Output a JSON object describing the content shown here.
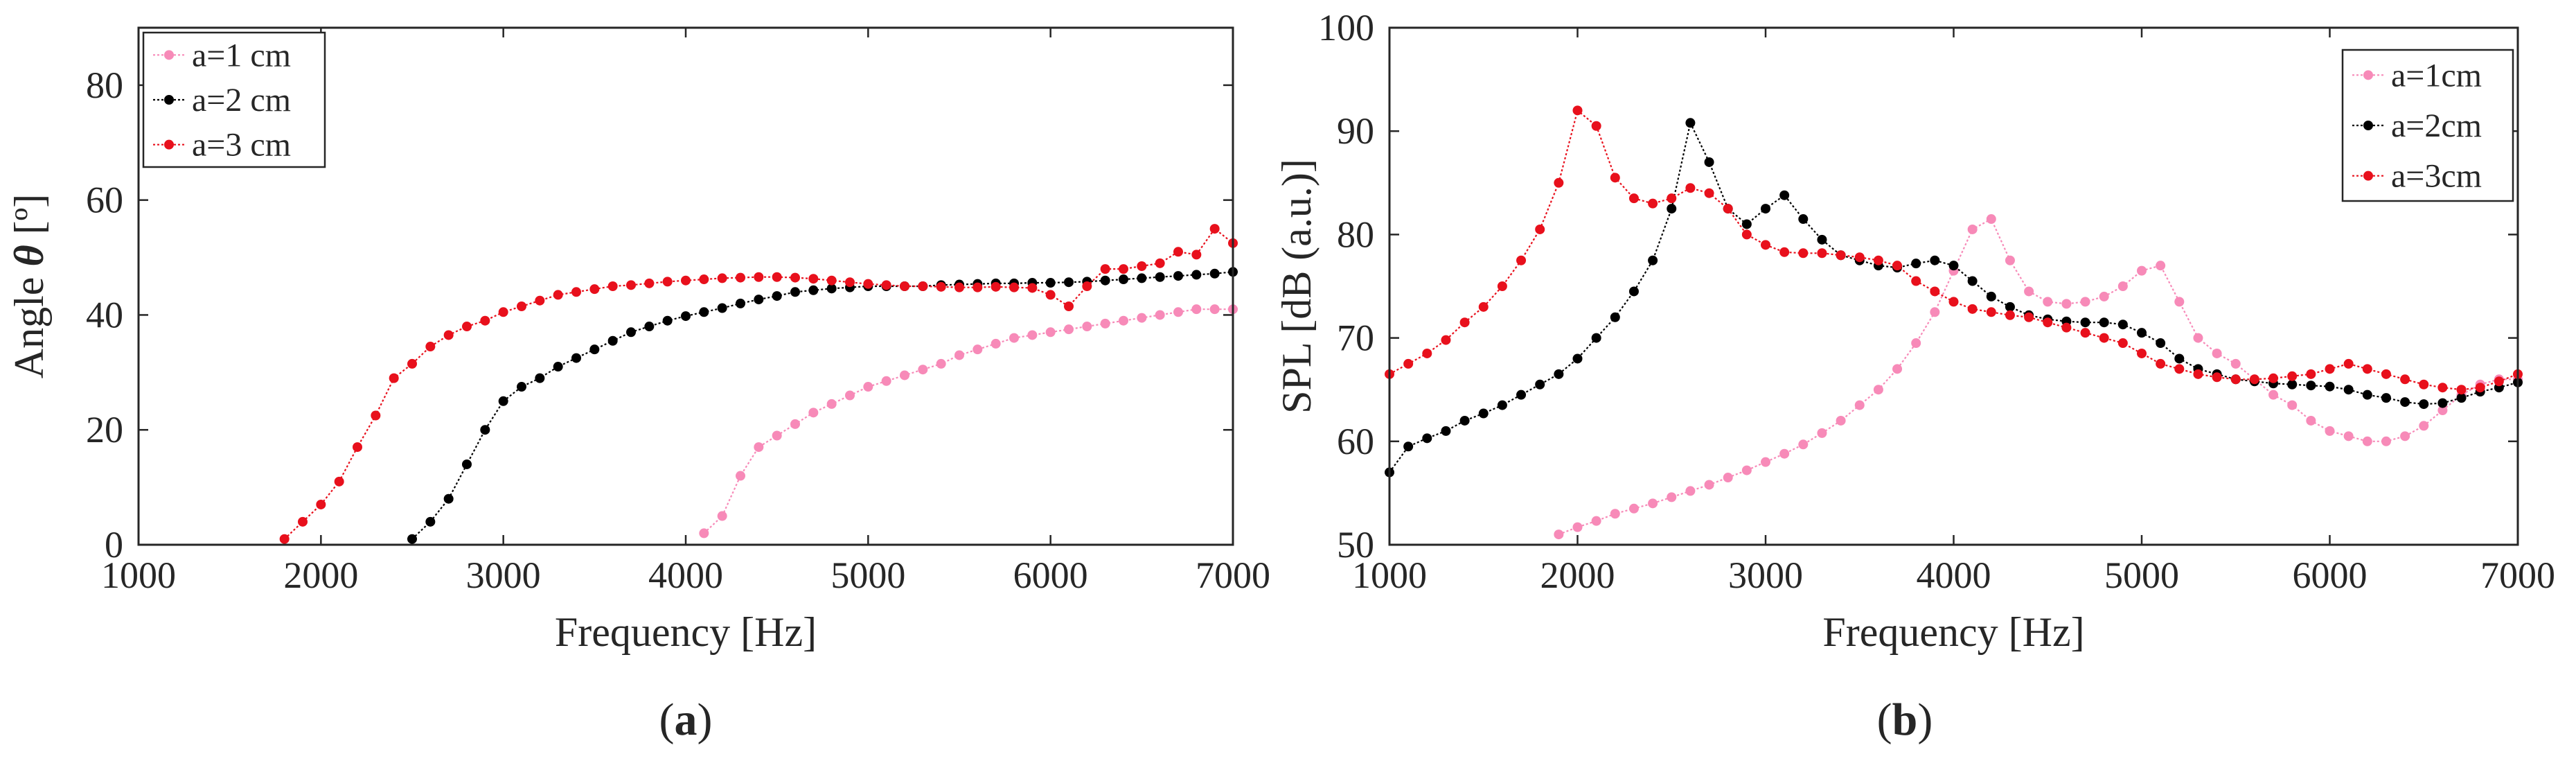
{
  "chart_data": [
    {
      "type": "line",
      "panel_label_prefix": "(",
      "panel_label_letter": "a",
      "panel_label_suffix": ")",
      "xlabel": "Frequency [Hz]",
      "ylabel_prefix": "Angle ",
      "ylabel_symbol": "θ",
      "ylabel_suffix": " [º]",
      "xlim": [
        1000,
        7000
      ],
      "ylim": [
        0,
        90
      ],
      "xticks": [
        1000,
        2000,
        3000,
        4000,
        5000,
        6000,
        7000
      ],
      "yticks": [
        0,
        20,
        40,
        60,
        80
      ],
      "xtick_labels": [
        "1000",
        "2000",
        "3000",
        "4000",
        "5000",
        "6000",
        "7000"
      ],
      "ytick_labels": [
        "0",
        "20",
        "40",
        "60",
        "80"
      ],
      "legend_position": "top-left",
      "series": [
        {
          "name": "a=1 cm",
          "color": "#f78ab8",
          "x": [
            4100,
            4200,
            4300,
            4400,
            4500,
            4600,
            4700,
            4800,
            4900,
            5000,
            5100,
            5200,
            5300,
            5400,
            5500,
            5600,
            5700,
            5800,
            5900,
            6000,
            6100,
            6200,
            6300,
            6400,
            6500,
            6600,
            6700,
            6800,
            6900,
            7000
          ],
          "y": [
            2,
            5,
            12,
            17,
            19,
            21,
            23,
            24.5,
            26,
            27.5,
            28.5,
            29.5,
            30.5,
            31.5,
            33,
            34,
            35,
            36,
            36.5,
            37,
            37.5,
            38,
            38.5,
            39,
            39.5,
            40,
            40.5,
            41,
            41,
            41
          ]
        },
        {
          "name": "a=2 cm",
          "color": "#000000",
          "x": [
            2500,
            2600,
            2700,
            2800,
            2900,
            3000,
            3100,
            3200,
            3300,
            3400,
            3500,
            3600,
            3700,
            3800,
            3900,
            4000,
            4100,
            4200,
            4300,
            4400,
            4500,
            4600,
            4700,
            4800,
            4900,
            5000,
            5100,
            5200,
            5300,
            5400,
            5500,
            5600,
            5700,
            5800,
            5900,
            6000,
            6100,
            6200,
            6300,
            6400,
            6500,
            6600,
            6700,
            6800,
            6900,
            7000
          ],
          "y": [
            1,
            4,
            8,
            14,
            20,
            25,
            27.5,
            29,
            31,
            32.5,
            34,
            35.5,
            37,
            38,
            39,
            39.8,
            40.5,
            41.2,
            42,
            42.7,
            43.3,
            44,
            44.3,
            44.6,
            44.8,
            45,
            45,
            45,
            45,
            45.2,
            45.3,
            45.4,
            45.5,
            45.5,
            45.6,
            45.6,
            45.7,
            45.8,
            46,
            46.2,
            46.4,
            46.6,
            46.8,
            47,
            47.2,
            47.5
          ]
        },
        {
          "name": "a=3 cm",
          "color": "#e8101c",
          "x": [
            1800,
            1900,
            2000,
            2100,
            2200,
            2300,
            2400,
            2500,
            2600,
            2700,
            2800,
            2900,
            3000,
            3100,
            3200,
            3300,
            3400,
            3500,
            3600,
            3700,
            3800,
            3900,
            4000,
            4100,
            4200,
            4300,
            4400,
            4500,
            4600,
            4700,
            4800,
            4900,
            5000,
            5100,
            5200,
            5300,
            5400,
            5500,
            5600,
            5700,
            5800,
            5900,
            6000,
            6100,
            6200,
            6300,
            6400,
            6500,
            6600,
            6700,
            6800,
            6900,
            7000
          ],
          "y": [
            1,
            4,
            7,
            11,
            17,
            22.5,
            29,
            31.5,
            34.5,
            36.5,
            38,
            39,
            40.5,
            41.5,
            42.5,
            43.5,
            44,
            44.5,
            45,
            45.2,
            45.5,
            45.8,
            46,
            46.2,
            46.4,
            46.5,
            46.6,
            46.6,
            46.5,
            46.3,
            46,
            45.7,
            45.4,
            45.2,
            45,
            45,
            44.9,
            44.8,
            44.8,
            44.9,
            44.8,
            44.7,
            43.5,
            41.5,
            45,
            48,
            48,
            48.5,
            49,
            51,
            50.5,
            55,
            52.5
          ]
        }
      ]
    },
    {
      "type": "line",
      "panel_label_prefix": "(",
      "panel_label_letter": "b",
      "panel_label_suffix": ")",
      "xlabel": "Frequency [Hz]",
      "ylabel": "SPL [dB (a.u.)]",
      "xlim": [
        1000,
        7000
      ],
      "ylim": [
        50,
        100
      ],
      "xticks": [
        1000,
        2000,
        3000,
        4000,
        5000,
        6000,
        7000
      ],
      "yticks": [
        50,
        60,
        70,
        80,
        90,
        100
      ],
      "xtick_labels": [
        "1000",
        "2000",
        "3000",
        "4000",
        "5000",
        "6000",
        "7000"
      ],
      "ytick_labels": [
        "50",
        "60",
        "70",
        "80",
        "90",
        "100"
      ],
      "legend_position": "top-right",
      "series": [
        {
          "name": "a=1cm",
          "color": "#f78ab8",
          "x": [
            1900,
            2000,
            2100,
            2200,
            2300,
            2400,
            2500,
            2600,
            2700,
            2800,
            2900,
            3000,
            3100,
            3200,
            3300,
            3400,
            3500,
            3600,
            3700,
            3800,
            3900,
            4000,
            4100,
            4200,
            4300,
            4400,
            4500,
            4600,
            4700,
            4800,
            4900,
            5000,
            5100,
            5200,
            5300,
            5400,
            5500,
            5600,
            5700,
            5800,
            5900,
            6000,
            6100,
            6200,
            6300,
            6400,
            6500,
            6600,
            6700,
            6800,
            6900,
            7000
          ],
          "y": [
            51,
            51.7,
            52.3,
            53,
            53.5,
            54,
            54.6,
            55.2,
            55.8,
            56.5,
            57.2,
            58,
            58.8,
            59.7,
            60.8,
            62,
            63.5,
            65,
            67,
            69.5,
            72.5,
            76.5,
            80.5,
            81.5,
            77.5,
            74.5,
            73.5,
            73.3,
            73.5,
            74,
            75,
            76.5,
            77,
            73.5,
            70,
            68.5,
            67.5,
            66,
            64.5,
            63.5,
            62,
            61,
            60.5,
            60,
            60,
            60.5,
            61.5,
            63,
            64.5,
            65.5,
            66,
            66
          ]
        },
        {
          "name": "a=2cm",
          "color": "#000000",
          "x": [
            1000,
            1100,
            1200,
            1300,
            1400,
            1500,
            1600,
            1700,
            1800,
            1900,
            2000,
            2100,
            2200,
            2300,
            2400,
            2500,
            2600,
            2700,
            2800,
            2900,
            3000,
            3100,
            3200,
            3300,
            3400,
            3500,
            3600,
            3700,
            3800,
            3900,
            4000,
            4100,
            4200,
            4300,
            4400,
            4500,
            4600,
            4700,
            4800,
            4900,
            5000,
            5100,
            5200,
            5300,
            5400,
            5500,
            5600,
            5700,
            5800,
            5900,
            6000,
            6100,
            6200,
            6300,
            6400,
            6500,
            6600,
            6700,
            6800,
            6900,
            7000
          ],
          "y": [
            57,
            59.5,
            60.3,
            61,
            62,
            62.7,
            63.5,
            64.5,
            65.5,
            66.5,
            68,
            70,
            72,
            74.5,
            77.5,
            82.5,
            90.8,
            87,
            82.5,
            81,
            82.5,
            83.8,
            81.5,
            79.5,
            78,
            77.5,
            77,
            76.8,
            77.2,
            77.5,
            77,
            75.5,
            74,
            73,
            72.2,
            71.8,
            71.6,
            71.5,
            71.5,
            71.3,
            70.5,
            69.5,
            68,
            67,
            66.5,
            66,
            65.8,
            65.6,
            65.5,
            65.4,
            65.3,
            65,
            64.5,
            64.2,
            63.8,
            63.6,
            63.7,
            64.2,
            64.8,
            65.2,
            65.7
          ]
        },
        {
          "name": "a=3cm",
          "color": "#e8101c",
          "x": [
            1000,
            1100,
            1200,
            1300,
            1400,
            1500,
            1600,
            1700,
            1800,
            1900,
            2000,
            2100,
            2200,
            2300,
            2400,
            2500,
            2600,
            2700,
            2800,
            2900,
            3000,
            3100,
            3200,
            3300,
            3400,
            3500,
            3600,
            3700,
            3800,
            3900,
            4000,
            4100,
            4200,
            4300,
            4400,
            4500,
            4600,
            4700,
            4800,
            4900,
            5000,
            5100,
            5200,
            5300,
            5400,
            5500,
            5600,
            5700,
            5800,
            5900,
            6000,
            6100,
            6200,
            6300,
            6400,
            6500,
            6600,
            6700,
            6800,
            6900,
            7000
          ],
          "y": [
            66.5,
            67.5,
            68.5,
            69.8,
            71.5,
            73,
            75,
            77.5,
            80.5,
            85,
            92,
            90.5,
            85.5,
            83.5,
            83,
            83.5,
            84.5,
            84,
            82.5,
            80,
            79,
            78.3,
            78.2,
            78.2,
            78,
            77.8,
            77.5,
            77,
            75.5,
            74.5,
            73.5,
            72.8,
            72.5,
            72.2,
            72,
            71.5,
            71,
            70.5,
            70,
            69.5,
            68.5,
            67.5,
            67,
            66.5,
            66.2,
            66,
            66,
            66.1,
            66.3,
            66.5,
            67,
            67.5,
            67,
            66.5,
            66,
            65.5,
            65.2,
            65,
            65.2,
            65.8,
            66.5
          ]
        }
      ]
    }
  ]
}
